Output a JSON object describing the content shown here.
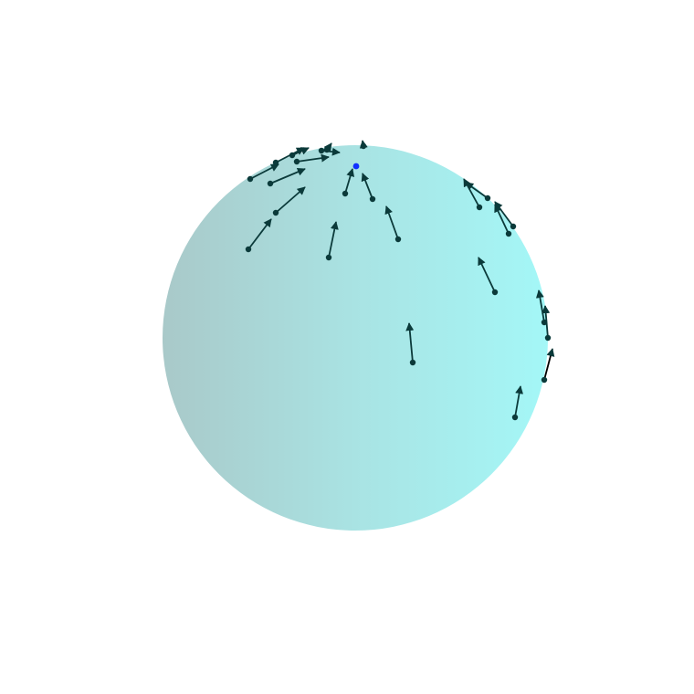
{
  "colors": {
    "background": "#ffffff",
    "sphere_left": "#a9c9c9",
    "sphere_center": "#a9e3e3",
    "sphere_right": "#a4f7f7",
    "vector": "#0b3a3a",
    "vector_dark": "#000000",
    "pole_marker": "#1030ff"
  },
  "figure": {
    "kind": "vector field on a sphere",
    "tail_points": 26,
    "highlighted_point": "pole marker"
  }
}
